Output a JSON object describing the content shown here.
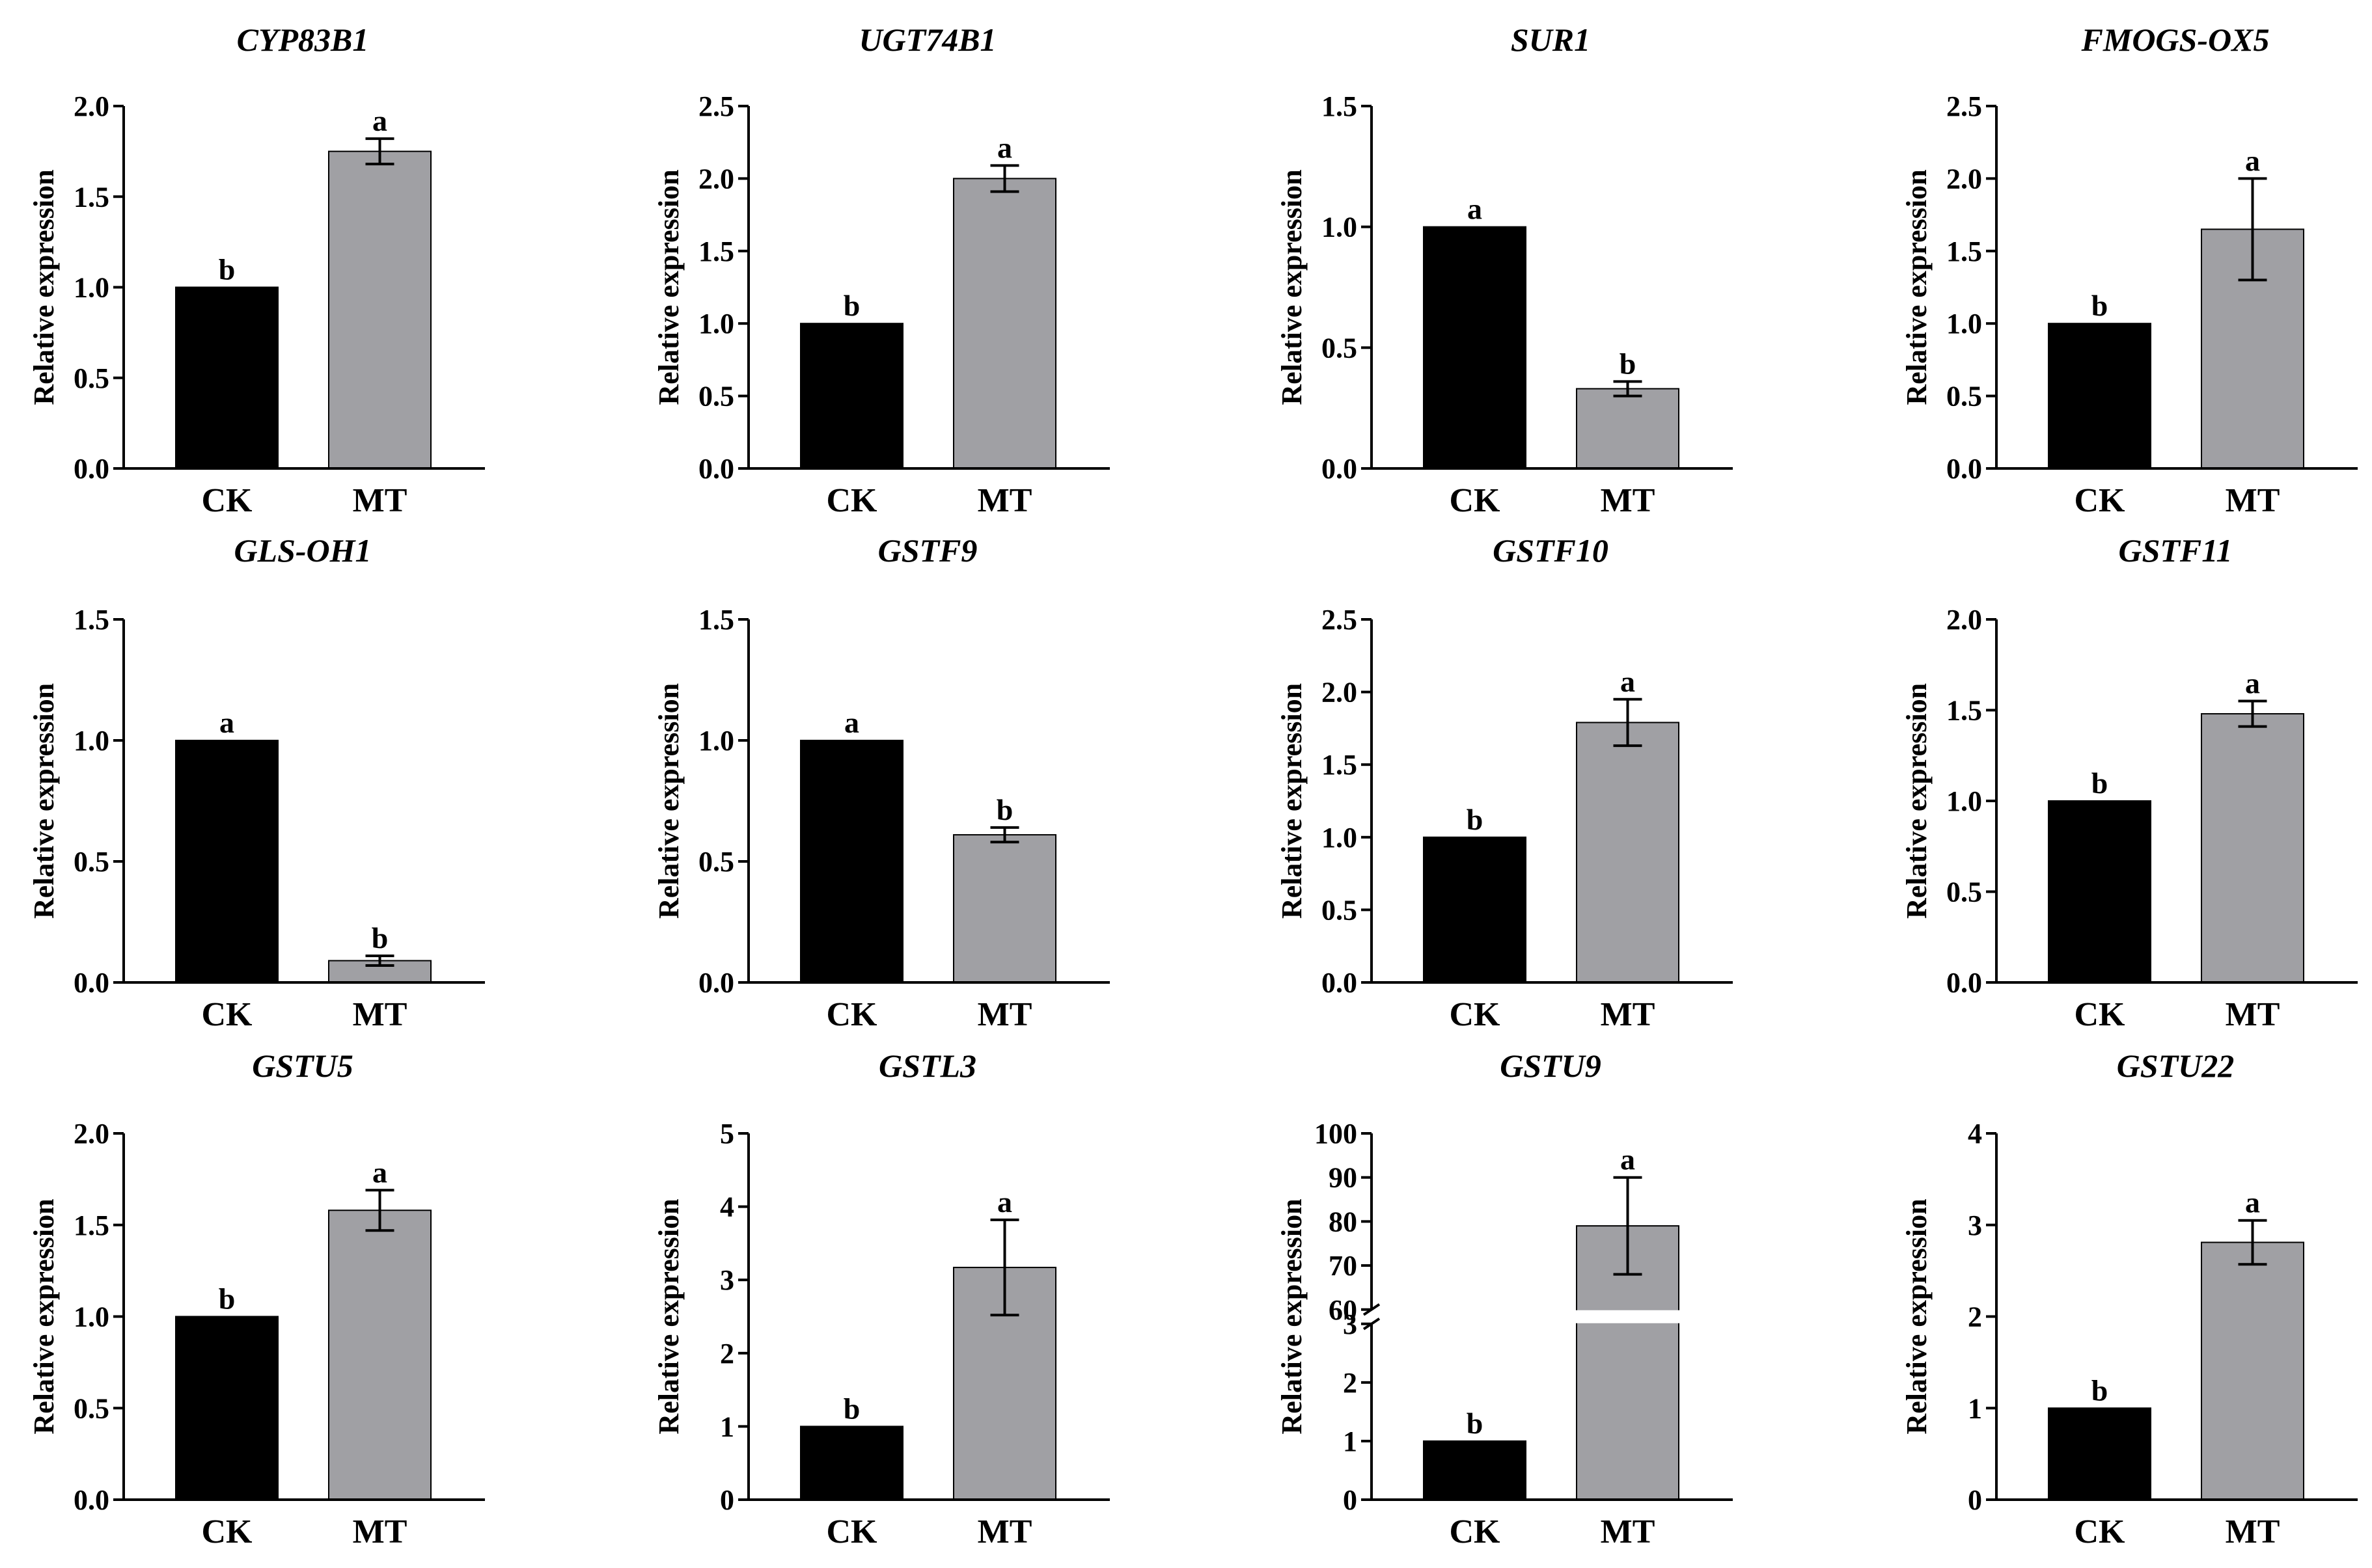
{
  "figure": {
    "ylabel": "Relative expression",
    "colors": {
      "CK": "#000000",
      "MT": "#a0a0a4",
      "axis": "#000000",
      "bar_edge": "#000000"
    }
  },
  "chart_data": [
    {
      "type": "bar",
      "title": "CYP83B1",
      "categories": [
        "CK",
        "MT"
      ],
      "values": [
        1.0,
        1.75
      ],
      "errors": [
        0,
        0.07
      ],
      "letters": [
        "b",
        "a"
      ],
      "ylabel": "Relative expression",
      "ylim": [
        0,
        2.0
      ],
      "yticks": [
        "0.0",
        "0.5",
        "1.0",
        "1.5",
        "2.0"
      ]
    },
    {
      "type": "bar",
      "title": "UGT74B1",
      "categories": [
        "CK",
        "MT"
      ],
      "values": [
        1.0,
        2.0
      ],
      "errors": [
        0,
        0.09
      ],
      "letters": [
        "b",
        "a"
      ],
      "ylabel": "Relative expression",
      "ylim": [
        0,
        2.5
      ],
      "yticks": [
        "0.0",
        "0.5",
        "1.0",
        "1.5",
        "2.0",
        "2.5"
      ]
    },
    {
      "type": "bar",
      "title": "SUR1",
      "categories": [
        "CK",
        "MT"
      ],
      "values": [
        1.0,
        0.33
      ],
      "errors": [
        0,
        0.03
      ],
      "letters": [
        "a",
        "b"
      ],
      "ylabel": "Relative expression",
      "ylim": [
        0,
        1.5
      ],
      "yticks": [
        "0.0",
        "0.5",
        "1.0",
        "1.5"
      ]
    },
    {
      "type": "bar",
      "title": "FMOGS-OX5",
      "categories": [
        "CK",
        "MT"
      ],
      "values": [
        1.0,
        1.65
      ],
      "errors": [
        0,
        0.35
      ],
      "letters": [
        "b",
        "a"
      ],
      "ylabel": "Relative expression",
      "ylim": [
        0,
        2.5
      ],
      "yticks": [
        "0.0",
        "0.5",
        "1.0",
        "1.5",
        "2.0",
        "2.5"
      ]
    },
    {
      "type": "bar",
      "title": "GLS-OH1",
      "categories": [
        "CK",
        "MT"
      ],
      "values": [
        1.0,
        0.09
      ],
      "errors": [
        0,
        0.02
      ],
      "letters": [
        "a",
        "b"
      ],
      "ylabel": "Relative expression",
      "ylim": [
        0,
        1.5
      ],
      "yticks": [
        "0.0",
        "0.5",
        "1.0",
        "1.5"
      ]
    },
    {
      "type": "bar",
      "title": "GSTF9",
      "categories": [
        "CK",
        "MT"
      ],
      "values": [
        1.0,
        0.61
      ],
      "errors": [
        0,
        0.03
      ],
      "letters": [
        "a",
        "b"
      ],
      "ylabel": "Relative expression",
      "ylim": [
        0,
        1.5
      ],
      "yticks": [
        "0.0",
        "0.5",
        "1.0",
        "1.5"
      ]
    },
    {
      "type": "bar",
      "title": "GSTF10",
      "categories": [
        "CK",
        "MT"
      ],
      "values": [
        1.0,
        1.79
      ],
      "errors": [
        0,
        0.16
      ],
      "letters": [
        "b",
        "a"
      ],
      "ylabel": "Relative expression",
      "ylim": [
        0,
        2.5
      ],
      "yticks": [
        "0.0",
        "0.5",
        "1.0",
        "1.5",
        "2.0",
        "2.5"
      ]
    },
    {
      "type": "bar",
      "title": "GSTF11",
      "categories": [
        "CK",
        "MT"
      ],
      "values": [
        1.0,
        1.48
      ],
      "errors": [
        0,
        0.07
      ],
      "letters": [
        "b",
        "a"
      ],
      "ylabel": "Relative expression",
      "ylim": [
        0,
        2.0
      ],
      "yticks": [
        "0.0",
        "0.5",
        "1.0",
        "1.5",
        "2.0"
      ]
    },
    {
      "type": "bar",
      "title": "GSTU5",
      "categories": [
        "CK",
        "MT"
      ],
      "values": [
        1.0,
        1.58
      ],
      "errors": [
        0,
        0.11
      ],
      "letters": [
        "b",
        "a"
      ],
      "ylabel": "Relative expression",
      "ylim": [
        0,
        2.0
      ],
      "yticks": [
        "0.0",
        "0.5",
        "1.0",
        "1.5",
        "2.0"
      ]
    },
    {
      "type": "bar",
      "title": "GSTL3",
      "categories": [
        "CK",
        "MT"
      ],
      "values": [
        1.0,
        3.17
      ],
      "errors": [
        0,
        0.65
      ],
      "letters": [
        "b",
        "a"
      ],
      "ylabel": "Relative expression",
      "ylim": [
        0,
        5
      ],
      "yticks": [
        "0",
        "1",
        "2",
        "3",
        "4",
        "5"
      ]
    },
    {
      "type": "bar",
      "title": "GSTU9",
      "categories": [
        "CK",
        "MT"
      ],
      "values": [
        1.0,
        79
      ],
      "errors": [
        0,
        11
      ],
      "letters": [
        "b",
        "a"
      ],
      "ylabel": "Relative expression",
      "ylim": [
        0,
        100
      ],
      "axis_break": [
        3,
        60
      ],
      "yticks": [
        "0",
        "1",
        "2",
        "3",
        "60",
        "70",
        "80",
        "90",
        "100"
      ]
    },
    {
      "type": "bar",
      "title": "GSTU22",
      "categories": [
        "CK",
        "MT"
      ],
      "values": [
        1.0,
        2.81
      ],
      "errors": [
        0,
        0.24
      ],
      "letters": [
        "b",
        "a"
      ],
      "ylabel": "Relative expression",
      "ylim": [
        0,
        4
      ],
      "yticks": [
        "0",
        "1",
        "2",
        "3",
        "4"
      ]
    }
  ]
}
